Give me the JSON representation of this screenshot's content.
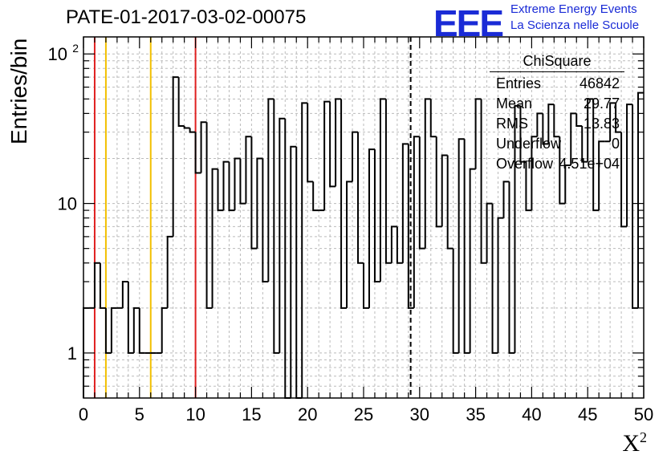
{
  "title": "PATE-01-2017-03-02-00075",
  "logo": {
    "mark": "EEE",
    "line1": "Extreme Energy Events",
    "line2": "La Scienza nelle Scuole",
    "color": "#1a2bd6"
  },
  "stats": {
    "name": "ChiSquare",
    "rows": [
      {
        "label": "Entries",
        "value": "46842"
      },
      {
        "label": "Mean",
        "value": "29.77"
      },
      {
        "label": "RMS",
        "value": "13.83"
      },
      {
        "label": "Underflow",
        "value": "0"
      },
      {
        "label": "Overflow",
        "value": "4.51e+04"
      }
    ]
  },
  "chart_data": {
    "type": "bar",
    "style": "step-histogram",
    "xlabel": "X",
    "xlabel_superscript": "2",
    "ylabel": "Entries/bin",
    "xlim": [
      0,
      50
    ],
    "ylim": [
      0.5,
      130
    ],
    "yscale": "log",
    "grid": true,
    "x_ticks": [
      "0",
      "5",
      "10",
      "15",
      "20",
      "25",
      "30",
      "35",
      "40",
      "45",
      "50"
    ],
    "y_ticks": [
      {
        "value": 1,
        "label": "1"
      },
      {
        "value": 10,
        "label": "10"
      },
      {
        "value": 100,
        "label": "10",
        "sup": "2"
      }
    ],
    "bin_width": 0.5,
    "bin_start": 0,
    "values": [
      2,
      2,
      4,
      2,
      1,
      2,
      2,
      3,
      1,
      2,
      1,
      1,
      1,
      1,
      2,
      6,
      70,
      33,
      32,
      30,
      16,
      35,
      2,
      17,
      9,
      19,
      9,
      20,
      10,
      28,
      5,
      20,
      3,
      50,
      1,
      37,
      0.4,
      24,
      0.4,
      47,
      14,
      9,
      9,
      48,
      13,
      50,
      2,
      14,
      30,
      4,
      2,
      23,
      3,
      50,
      4,
      7,
      4,
      25,
      2,
      28,
      5,
      50,
      28,
      7,
      21,
      5,
      1,
      27,
      1,
      17,
      50,
      4,
      10,
      1,
      8,
      14,
      1,
      45,
      19,
      9,
      28,
      40,
      25,
      46,
      28,
      10,
      18,
      40,
      33,
      19,
      50,
      9,
      26,
      26,
      47,
      30,
      7,
      46,
      2,
      55
    ],
    "vlines": [
      {
        "x": 1,
        "color": "#e02020",
        "style": "solid"
      },
      {
        "x": 2,
        "color": "#f2c000",
        "style": "solid"
      },
      {
        "x": 6,
        "color": "#f2c000",
        "style": "solid"
      },
      {
        "x": 10,
        "color": "#e02020",
        "style": "solid"
      },
      {
        "x": 29.2,
        "color": "#000000",
        "style": "dashed"
      }
    ]
  }
}
